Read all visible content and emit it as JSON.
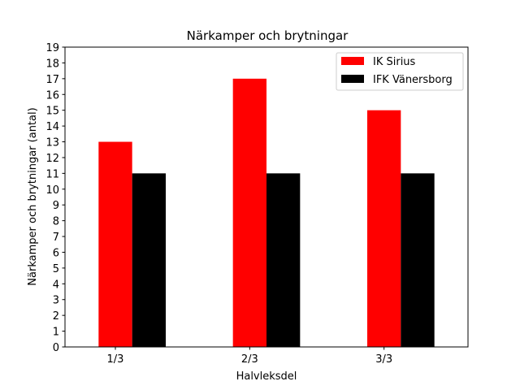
{
  "chart_data": {
    "type": "bar",
    "title": "Närkamper och brytningar",
    "xlabel": "Halvleksdel",
    "ylabel": "Närkamper och brytningar (antal)",
    "categories": [
      "1/3",
      "2/3",
      "3/3"
    ],
    "series": [
      {
        "name": "IK Sirius",
        "color": "#ff0000",
        "values": [
          13,
          17,
          15
        ]
      },
      {
        "name": "IFK Vänersborg",
        "color": "#000000",
        "values": [
          11,
          11,
          11
        ]
      }
    ],
    "ylim": [
      0,
      19
    ],
    "yticks": [
      0,
      1,
      2,
      3,
      4,
      5,
      6,
      7,
      8,
      9,
      10,
      11,
      12,
      13,
      14,
      15,
      16,
      17,
      18,
      19
    ],
    "grid": false,
    "legend_position": "top-right"
  }
}
